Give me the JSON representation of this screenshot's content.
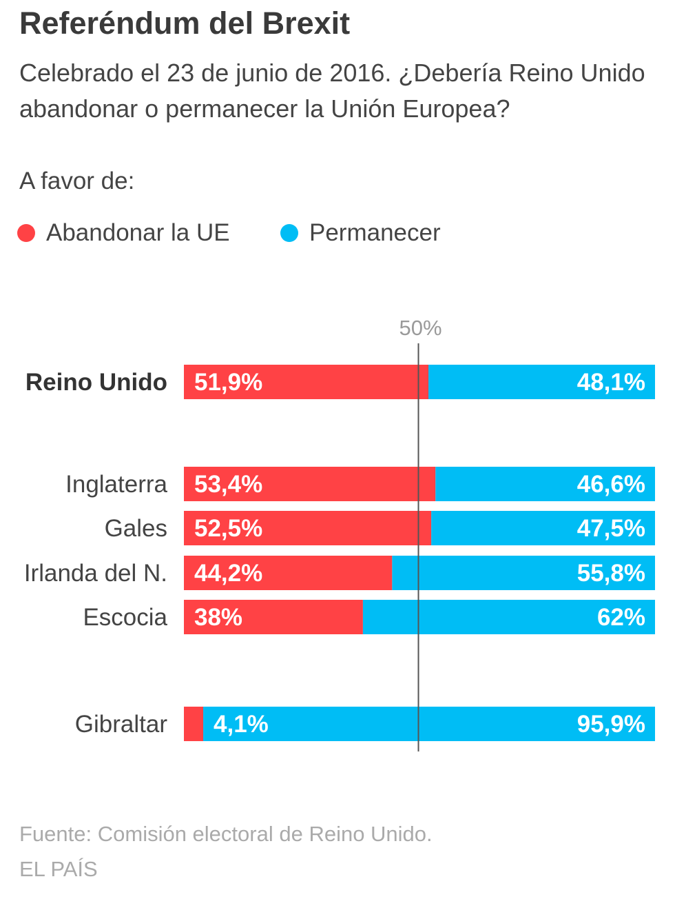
{
  "header": {
    "title": "Referéndum del Brexit",
    "subtitle": "Celebrado el 23 de junio de 2016. ¿Debería Reino Unido abandonar o permanecer la Unión Europea?",
    "favor_label": "A favor de:"
  },
  "legend": {
    "leave_label": "Abandonar la UE",
    "remain_label": "Permanecer"
  },
  "colors": {
    "leave": "#ff4245",
    "remain": "#00bdf5",
    "reference_line": "#555555"
  },
  "chart_data": {
    "type": "bar",
    "orientation": "horizontal",
    "stacked": true,
    "categories": [
      "Reino Unido",
      "Inglaterra",
      "Gales",
      "Irlanda del N.",
      "Escocia",
      "Gibraltar"
    ],
    "series": [
      {
        "name": "Abandonar la UE",
        "values": [
          51.9,
          53.4,
          52.5,
          44.2,
          38,
          4.1
        ],
        "labels": [
          "51,9%",
          "53,4%",
          "52,5%",
          "44,2%",
          "38%",
          "4,1%"
        ]
      },
      {
        "name": "Permanecer",
        "values": [
          48.1,
          46.6,
          47.5,
          55.8,
          62,
          95.9
        ],
        "labels": [
          "48,1%",
          "46,6%",
          "47,5%",
          "55,8%",
          "62%",
          "95,9%"
        ]
      }
    ],
    "xlim": [
      0,
      100
    ],
    "reference_line": {
      "value": 50,
      "label": "50%"
    },
    "highlighted_category": "Reino Unido",
    "legend_position": "top-left"
  },
  "footer": {
    "source": "Fuente: Comisión electoral de Reino Unido.",
    "credit": "EL PAÍS"
  }
}
